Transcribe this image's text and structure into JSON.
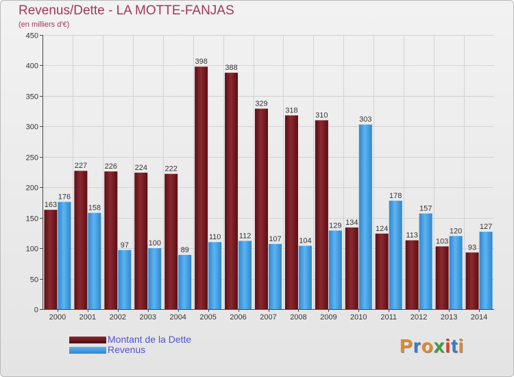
{
  "title": "Revenus/Dette - LA MOTTE-FANJAS",
  "subtitle": "(en milliers d'€)",
  "logo_text": "Proxiti",
  "logo_colors": [
    "#e08a2a",
    "#3a7ac0",
    "#e08a2a",
    "#3ba03b",
    "#d64030",
    "#3a7ac0",
    "#e08a2a"
  ],
  "chart_data": {
    "type": "bar",
    "title": "Revenus/Dette - LA MOTTE-FANJAS",
    "ylabel": "(en milliers d'€)",
    "xlabel": "",
    "ylim": [
      0,
      450
    ],
    "yticks": [
      0,
      50,
      100,
      150,
      200,
      250,
      300,
      350,
      400,
      450
    ],
    "grid": true,
    "legend_position": "bottom-left",
    "categories": [
      "2000",
      "2001",
      "2002",
      "2003",
      "2004",
      "2005",
      "2006",
      "2007",
      "2008",
      "2009",
      "2010",
      "2011",
      "2012",
      "2013",
      "2014"
    ],
    "series": [
      {
        "name": "Montant de la Dette",
        "color": "#7a1c22",
        "values": [
          163,
          227,
          226,
          224,
          222,
          398,
          388,
          329,
          318,
          310,
          134,
          124,
          113,
          103,
          93
        ]
      },
      {
        "name": "Revenus",
        "color": "#4aa3e6",
        "values": [
          176,
          158,
          97,
          100,
          89,
          110,
          112,
          107,
          104,
          129,
          303,
          178,
          157,
          120,
          127
        ]
      }
    ]
  }
}
